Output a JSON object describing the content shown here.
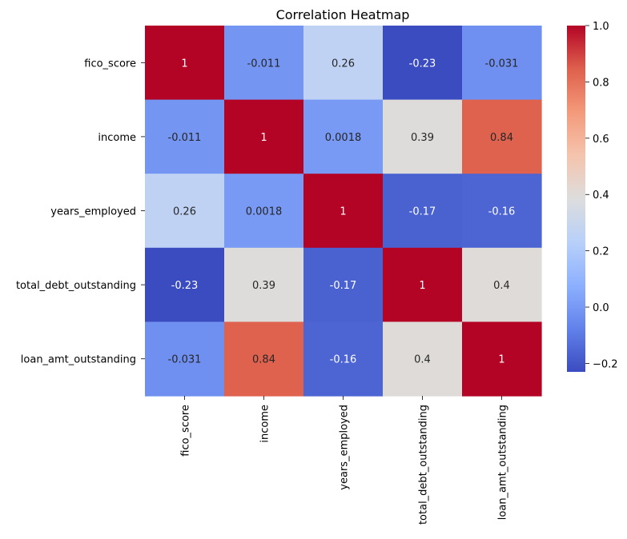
{
  "chart_data": {
    "type": "heatmap",
    "title": "Correlation Heatmap",
    "rows": [
      "fico_score",
      "income",
      "years_employed",
      "total_debt_outstanding",
      "loan_amt_outstanding"
    ],
    "columns": [
      "fico_score",
      "income",
      "years_employed",
      "total_debt_outstanding",
      "loan_amt_outstanding"
    ],
    "values": [
      [
        1,
        -0.011,
        0.26,
        -0.23,
        -0.031
      ],
      [
        -0.011,
        1,
        0.0018,
        0.39,
        0.84
      ],
      [
        0.26,
        0.0018,
        1,
        -0.17,
        -0.16
      ],
      [
        -0.23,
        0.39,
        -0.17,
        1,
        0.4
      ],
      [
        -0.031,
        0.84,
        -0.16,
        0.4,
        1
      ]
    ],
    "colormap": "coolwarm",
    "colorbar": {
      "min": -0.23,
      "max": 1,
      "ticks": [
        -0.2,
        0.0,
        0.2,
        0.4,
        0.6,
        0.8,
        1.0
      ],
      "tick_labels": [
        "−0.2",
        "0.0",
        "0.2",
        "0.4",
        "0.6",
        "0.8",
        "1.0"
      ]
    }
  }
}
